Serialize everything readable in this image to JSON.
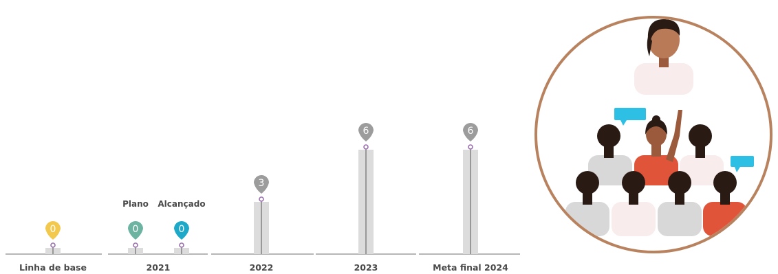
{
  "chart_data": {
    "type": "bar",
    "categories": [
      "Linha de base",
      "2021",
      "2022",
      "2023",
      "Meta final 2024"
    ],
    "bars": [
      {
        "category": "Linha de base",
        "label": "",
        "value": 0,
        "value_label": "0",
        "color": "#f2c94c"
      },
      {
        "category": "2021",
        "label": "Plano",
        "value": 0,
        "value_label": "0",
        "color": "#6db3a1"
      },
      {
        "category": "2021",
        "label": "Alcançado",
        "value": 0,
        "value_label": "0",
        "color": "#1ea9c9"
      },
      {
        "category": "2022",
        "label": "",
        "value": 3,
        "value_label": "3",
        "color": "#9c9c9c"
      },
      {
        "category": "2023",
        "label": "",
        "value": 6,
        "value_label": "6",
        "color": "#9c9c9c"
      },
      {
        "category": "Meta final 2024",
        "label": "",
        "value": 6,
        "value_label": "6",
        "color": "#9c9c9c"
      }
    ],
    "ylim": [
      0,
      6
    ],
    "grid": false,
    "title": "",
    "xlabel": "",
    "ylabel": ""
  },
  "colors": {
    "bar_fill": "#dcdcdc",
    "axis_line": "#8a8a8a",
    "marker": "#9b6fb0",
    "ring": "#b8825f"
  }
}
